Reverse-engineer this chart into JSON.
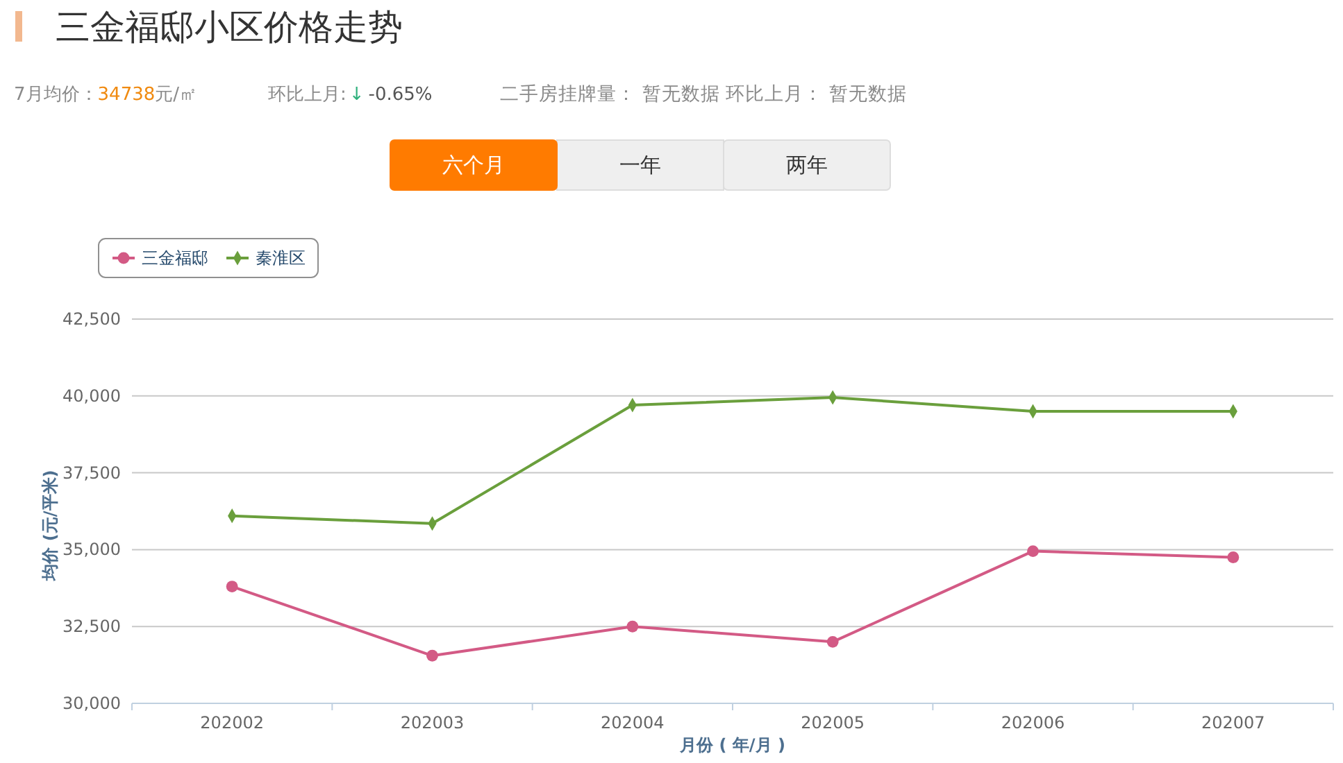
{
  "chart_data": {
    "type": "line",
    "title": "三金福邸小区价格走势",
    "xlabel": "月份 ( 年/月 )",
    "ylabel": "均价 (元/平米)",
    "categories": [
      "202002",
      "202003",
      "202004",
      "202005",
      "202006",
      "202007"
    ],
    "series": [
      {
        "name": "三金福邸",
        "color": "#d35a85",
        "marker": "circle",
        "values": [
          33800,
          31550,
          32500,
          32000,
          34950,
          34750
        ]
      },
      {
        "name": "秦淮区",
        "color": "#6a9f3c",
        "marker": "diamond",
        "values": [
          36100,
          35850,
          39700,
          39950,
          39500,
          39500
        ]
      }
    ],
    "ylim": [
      30000,
      42500
    ],
    "yticks": [
      {
        "value": 30000,
        "label": "30,000"
      },
      {
        "value": 32500,
        "label": "32,500"
      },
      {
        "value": 35000,
        "label": "35,000"
      },
      {
        "value": 37500,
        "label": "37,500"
      },
      {
        "value": 40000,
        "label": "40,000"
      },
      {
        "value": 42500,
        "label": "42,500"
      }
    ],
    "grid": "y",
    "legend": "top left",
    "annotations": [
      "7月均价：",
      "34738",
      "元/㎡",
      "环比上月:",
      "↓",
      "-0.65%",
      "二手房挂牌量： 暂无数据 环比上月： 暂无数据",
      "六个月",
      "一年",
      "两年"
    ]
  }
}
